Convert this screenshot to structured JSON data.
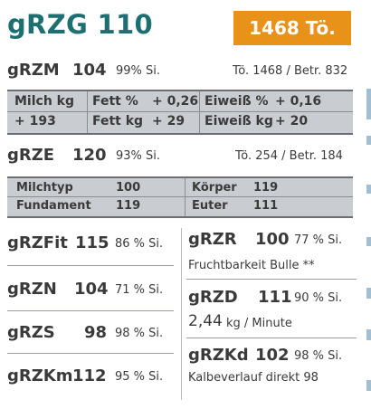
{
  "header": {
    "title": "gRZG 110",
    "badge": "1468 Tö."
  },
  "grzm": {
    "name": "gRZM",
    "value": "104",
    "security": "99% Si.",
    "info": "Tö. 1468 / Betr. 832"
  },
  "milk_table": {
    "r1": {
      "a": "Milch kg",
      "b": "Fett %",
      "c": "+ 0,26",
      "d": "Eiweiß %",
      "e": "+ 0,16"
    },
    "r2": {
      "a": "+ 193",
      "b": "Fett kg",
      "c": "+ 29",
      "d": "Eiweiß kg",
      "e": "+ 20"
    }
  },
  "grze": {
    "name": "gRZE",
    "value": "120",
    "security": "93% Si.",
    "info": "Tö. 254 / Betr. 184"
  },
  "exterior_table": {
    "r1": {
      "a": "Milchtyp",
      "b": "100",
      "c": "Körper",
      "d": "119"
    },
    "r2": {
      "a": "Fundament",
      "b": "119",
      "c": "Euter",
      "d": "111"
    }
  },
  "left_traits": [
    {
      "name": "gRZFit",
      "value": "115",
      "security": "86 % Si."
    },
    {
      "name": "gRZN",
      "value": "104",
      "security": "71 % Si."
    },
    {
      "name": "gRZS",
      "value": "98",
      "security": "98 % Si."
    },
    {
      "name": "gRZKm",
      "value": "112",
      "security": "95 % Si."
    }
  ],
  "right_traits": {
    "grzr": {
      "name": "gRZR",
      "value": "100",
      "security": "77 % Si.",
      "sub": "Fruchtbarkeit Bulle **"
    },
    "grzd": {
      "name": "gRZD",
      "value": "111",
      "security": "90 % Si.",
      "sub_value": "2,44",
      "sub_unit": "kg / Minute"
    },
    "grzkd": {
      "name": "gRZKd",
      "value": "102",
      "security": "98 % Si.",
      "sub": "Kalbeverlauf direkt 98"
    }
  },
  "colors": {
    "title": "#1d6f72",
    "badge": "#e8921a",
    "table_bg": "#c9cdd1"
  }
}
